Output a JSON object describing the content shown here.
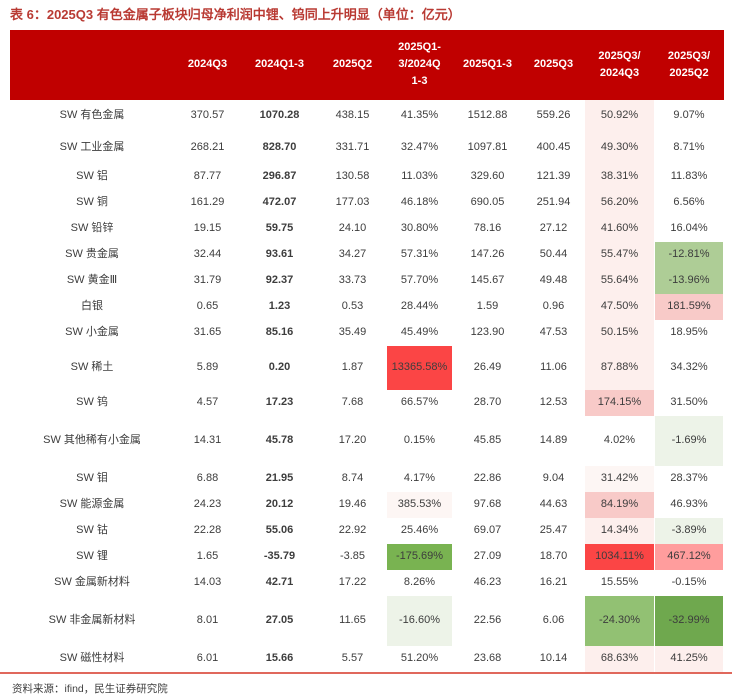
{
  "page": {
    "title": "表 6：2025Q3 有色金属子板块归母净利润中锂、钨同上升明显（单位：亿元）",
    "source": "资料来源：ifind，民生证券研究院"
  },
  "colors": {
    "header_bg": "#c00000",
    "title_text": "#b93a33",
    "divider": "#e0685c",
    "cell_tokens": {
      "red": "#fb4545",
      "salmon": "#ff9d9d",
      "pinkM": "#f8cac8",
      "pinkL": "#fdefed",
      "pinkF": "#fdf6f4",
      "greenStrong": "#79b351",
      "greenDeep": "#6fa84e",
      "greenMid": "#92c173",
      "greenLight": "#aecd96",
      "greenFaint": "#edf3e8"
    }
  },
  "table": {
    "columns": [
      "",
      "2024Q3",
      "2024Q1-3",
      "2025Q2",
      "2025Q1-\n3/2024Q\n1-3",
      "2025Q1-3",
      "2025Q3",
      "2025Q3/\n2024Q3",
      "2025Q3/\n2025Q2"
    ],
    "rows": [
      {
        "label": "SW 有色金属",
        "level": 1,
        "values": [
          "370.57",
          "1070.28",
          "438.15",
          "41.35%",
          "1512.88",
          "559.26",
          "50.92%",
          "9.07%"
        ],
        "bg": [
          null,
          null,
          null,
          null,
          null,
          null,
          "pinkL",
          null
        ]
      },
      {
        "label": "SW 工业金属",
        "level": 1,
        "values": [
          "268.21",
          "828.70",
          "331.71",
          "32.47%",
          "1097.81",
          "400.45",
          "49.30%",
          "8.71%"
        ],
        "bg": [
          null,
          null,
          null,
          null,
          null,
          null,
          "pinkL",
          null
        ]
      },
      {
        "label": "SW 铝",
        "level": 2,
        "values": [
          "87.77",
          "296.87",
          "130.58",
          "11.03%",
          "329.60",
          "121.39",
          "38.31%",
          "11.83%"
        ],
        "bg": [
          null,
          null,
          null,
          null,
          null,
          null,
          "pinkL",
          null
        ]
      },
      {
        "label": "SW 铜",
        "level": 2,
        "values": [
          "161.29",
          "472.07",
          "177.03",
          "46.18%",
          "690.05",
          "251.94",
          "56.20%",
          "6.56%"
        ],
        "bg": [
          null,
          null,
          null,
          null,
          null,
          null,
          "pinkL",
          null
        ]
      },
      {
        "label": "SW 铅锌",
        "level": 2,
        "values": [
          "19.15",
          "59.75",
          "24.10",
          "30.80%",
          "78.16",
          "27.12",
          "41.60%",
          "16.04%"
        ],
        "bg": [
          null,
          null,
          null,
          null,
          null,
          null,
          "pinkL",
          null
        ]
      },
      {
        "label": "SW 贵金属",
        "level": 1,
        "values": [
          "32.44",
          "93.61",
          "34.27",
          "57.31%",
          "147.26",
          "50.44",
          "55.47%",
          "-12.81%"
        ],
        "bg": [
          null,
          null,
          null,
          null,
          null,
          null,
          "pinkL",
          "greenLight"
        ]
      },
      {
        "label": "SW 黄金Ⅲ",
        "level": 2,
        "values": [
          "31.79",
          "92.37",
          "33.73",
          "57.70%",
          "145.67",
          "49.48",
          "55.64%",
          "-13.96%"
        ],
        "bg": [
          null,
          null,
          null,
          null,
          null,
          null,
          "pinkL",
          "greenLight"
        ]
      },
      {
        "label": "白银",
        "level": 2,
        "values": [
          "0.65",
          "1.23",
          "0.53",
          "28.44%",
          "1.59",
          "0.96",
          "47.50%",
          "181.59%"
        ],
        "bg": [
          null,
          null,
          null,
          null,
          null,
          null,
          "pinkL",
          "pinkM"
        ]
      },
      {
        "label": "SW 小金属",
        "level": 1,
        "values": [
          "31.65",
          "85.16",
          "35.49",
          "45.49%",
          "123.90",
          "47.53",
          "50.15%",
          "18.95%"
        ],
        "bg": [
          null,
          null,
          null,
          null,
          null,
          null,
          "pinkL",
          null
        ]
      },
      {
        "label": "SW 稀土",
        "level": 2,
        "values": [
          "5.89",
          "0.20",
          "1.87",
          "13365.58%",
          "26.49",
          "11.06",
          "87.88%",
          "34.32%"
        ],
        "bg": [
          null,
          null,
          null,
          "red",
          null,
          null,
          "pinkL",
          null
        ]
      },
      {
        "label": "SW 钨",
        "level": 2,
        "values": [
          "4.57",
          "17.23",
          "7.68",
          "66.57%",
          "28.70",
          "12.53",
          "174.15%",
          "31.50%"
        ],
        "bg": [
          null,
          null,
          null,
          null,
          null,
          null,
          "pinkM",
          null
        ]
      },
      {
        "label": "SW 其他稀有小金属",
        "level": 2,
        "values": [
          "14.31",
          "45.78",
          "17.20",
          "0.15%",
          "45.85",
          "14.89",
          "4.02%",
          "-1.69%"
        ],
        "bg": [
          null,
          null,
          null,
          null,
          null,
          null,
          null,
          "greenFaint"
        ]
      },
      {
        "label": "SW 钼",
        "level": 2,
        "values": [
          "6.88",
          "21.95",
          "8.74",
          "4.17%",
          "22.86",
          "9.04",
          "31.42%",
          "28.37%"
        ],
        "bg": [
          null,
          null,
          null,
          null,
          null,
          null,
          "pinkF",
          null
        ]
      },
      {
        "label": "SW 能源金属",
        "level": 1,
        "values": [
          "24.23",
          "20.12",
          "19.46",
          "385.53%",
          "97.68",
          "44.63",
          "84.19%",
          "46.93%"
        ],
        "bg": [
          null,
          null,
          null,
          "pinkF",
          null,
          null,
          "pinkM",
          null
        ]
      },
      {
        "label": "SW 钴",
        "level": 2,
        "values": [
          "22.28",
          "55.06",
          "22.92",
          "25.46%",
          "69.07",
          "25.47",
          "14.34%",
          "-3.89%"
        ],
        "bg": [
          null,
          null,
          null,
          null,
          null,
          null,
          "pinkL",
          "greenFaint"
        ]
      },
      {
        "label": "SW 锂",
        "level": 2,
        "values": [
          "1.65",
          "-35.79",
          "-3.85",
          "-175.69%",
          "27.09",
          "18.70",
          "1034.11%",
          "467.12%"
        ],
        "bg": [
          null,
          null,
          null,
          "greenStrong",
          null,
          null,
          "red",
          "salmon"
        ]
      },
      {
        "label": "SW 金属新材料",
        "level": 1,
        "values": [
          "14.03",
          "42.71",
          "17.22",
          "8.26%",
          "46.23",
          "16.21",
          "15.55%",
          "-0.15%"
        ],
        "bg": [
          null,
          null,
          null,
          null,
          null,
          null,
          null,
          null
        ]
      },
      {
        "label": "SW 非金属新材料",
        "level": 2,
        "values": [
          "8.01",
          "27.05",
          "11.65",
          "-16.60%",
          "22.56",
          "6.06",
          "-24.30%",
          "-32.99%"
        ],
        "bg": [
          null,
          null,
          null,
          "greenFaint",
          null,
          null,
          "greenMid",
          "greenDeep"
        ]
      },
      {
        "label": "SW 磁性材料",
        "level": 2,
        "values": [
          "6.01",
          "15.66",
          "5.57",
          "51.20%",
          "23.68",
          "10.14",
          "68.63%",
          "41.25%"
        ],
        "bg": [
          null,
          null,
          null,
          null,
          null,
          null,
          "pinkL",
          "pinkL"
        ]
      }
    ]
  }
}
